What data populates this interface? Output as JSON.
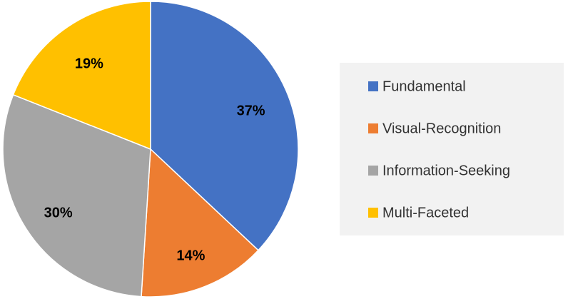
{
  "chart_data": {
    "type": "pie",
    "categories": [
      "Fundamental",
      "Visual-Recognition",
      "Information-Seeking",
      "Multi-Faceted"
    ],
    "values": [
      37,
      14,
      30,
      19
    ],
    "value_labels": [
      "37%",
      "14%",
      "30%",
      "19%"
    ],
    "colors": [
      "#4472c4",
      "#ed7d31",
      "#a5a5a5",
      "#ffc000"
    ],
    "legend": "right"
  }
}
